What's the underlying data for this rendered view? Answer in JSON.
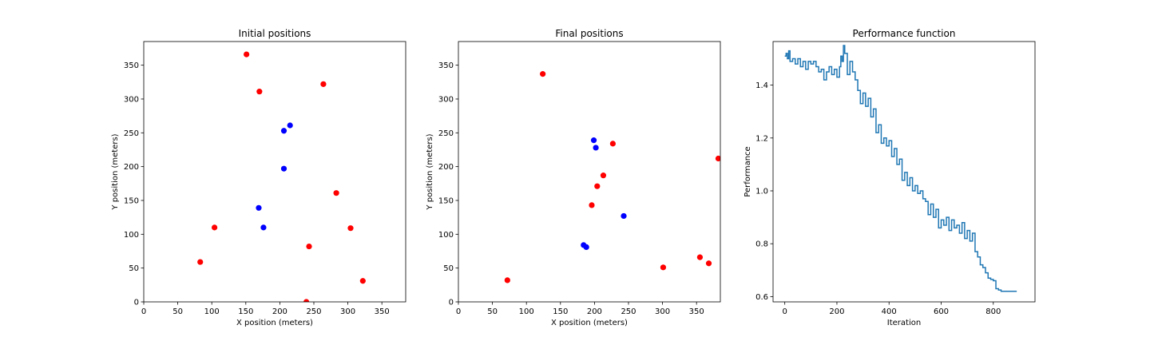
{
  "colors": {
    "red": "#ff0000",
    "blue": "#0000ff",
    "line": "#1f77b4",
    "axis": "#000000"
  },
  "chart_data": [
    {
      "type": "scatter",
      "title": "Initial positions",
      "xlabel": "X position (meters)",
      "ylabel": "Y position (meters)",
      "xlim": [
        0,
        385
      ],
      "ylim": [
        0,
        385
      ],
      "xticks": [
        0,
        50,
        100,
        150,
        200,
        250,
        300,
        350
      ],
      "yticks": [
        0,
        50,
        100,
        150,
        200,
        250,
        300,
        350
      ],
      "grid": false,
      "series": [
        {
          "color": "#ff0000",
          "points": [
            [
              151,
              366
            ],
            [
              170,
              311
            ],
            [
              264,
              322
            ],
            [
              283,
              161
            ],
            [
              104,
              110
            ],
            [
              304,
              109
            ],
            [
              83,
              59
            ],
            [
              243,
              82
            ],
            [
              322,
              31
            ],
            [
              239,
              0
            ]
          ]
        },
        {
          "color": "#0000ff",
          "points": [
            [
              215,
              261
            ],
            [
              206,
              253
            ],
            [
              206,
              197
            ],
            [
              169,
              139
            ],
            [
              176,
              110
            ]
          ]
        }
      ]
    },
    {
      "type": "scatter",
      "title": "Final positions",
      "xlabel": "X position (meters)",
      "ylabel": "Y position (meters)",
      "xlim": [
        0,
        385
      ],
      "ylim": [
        0,
        385
      ],
      "xticks": [
        0,
        50,
        100,
        150,
        200,
        250,
        300,
        350
      ],
      "yticks": [
        0,
        50,
        100,
        150,
        200,
        250,
        300,
        350
      ],
      "grid": false,
      "series": [
        {
          "color": "#ff0000",
          "points": [
            [
              124,
              337
            ],
            [
              227,
              234
            ],
            [
              382,
              212
            ],
            [
              213,
              187
            ],
            [
              204,
              171
            ],
            [
              196,
              143
            ],
            [
              301,
              51
            ],
            [
              355,
              66
            ],
            [
              368,
              57
            ],
            [
              72,
              32
            ]
          ]
        },
        {
          "color": "#0000ff",
          "points": [
            [
              199,
              239
            ],
            [
              202,
              228
            ],
            [
              243,
              127
            ],
            [
              184,
              84
            ],
            [
              188,
              81
            ]
          ]
        }
      ]
    },
    {
      "type": "line",
      "step": true,
      "title": "Performance function",
      "xlabel": "Iteration",
      "ylabel": "Performance",
      "xlim": [
        -45,
        960
      ],
      "ylim": [
        0.58,
        1.565
      ],
      "xticks": [
        0,
        200,
        400,
        600,
        800
      ],
      "yticks": [
        0.6,
        0.8,
        1.0,
        1.2,
        1.4
      ],
      "ytick_labels": [
        "0.6",
        "0.8",
        "1.0",
        "1.2",
        "1.4"
      ],
      "grid": false,
      "series": [
        {
          "color": "#1f77b4",
          "x": [
            0,
            5,
            10,
            15,
            20,
            30,
            40,
            50,
            60,
            70,
            80,
            90,
            100,
            110,
            120,
            130,
            140,
            150,
            160,
            170,
            180,
            190,
            200,
            210,
            215,
            220,
            225,
            230,
            240,
            250,
            260,
            270,
            280,
            290,
            300,
            310,
            320,
            330,
            340,
            350,
            360,
            370,
            380,
            390,
            400,
            410,
            420,
            430,
            440,
            450,
            460,
            470,
            480,
            490,
            500,
            510,
            520,
            530,
            540,
            550,
            560,
            570,
            580,
            590,
            600,
            610,
            620,
            630,
            640,
            650,
            660,
            670,
            680,
            690,
            700,
            710,
            720,
            730,
            740,
            750,
            760,
            770,
            780,
            790,
            800,
            810,
            820,
            830,
            840,
            850,
            860,
            870,
            880,
            890
          ],
          "y": [
            1.51,
            1.52,
            1.5,
            1.53,
            1.49,
            1.5,
            1.48,
            1.5,
            1.47,
            1.49,
            1.46,
            1.49,
            1.48,
            1.49,
            1.47,
            1.45,
            1.46,
            1.42,
            1.45,
            1.47,
            1.44,
            1.46,
            1.43,
            1.47,
            1.51,
            1.49,
            1.55,
            1.52,
            1.44,
            1.49,
            1.45,
            1.42,
            1.38,
            1.33,
            1.37,
            1.32,
            1.35,
            1.28,
            1.31,
            1.22,
            1.25,
            1.18,
            1.2,
            1.17,
            1.19,
            1.13,
            1.16,
            1.1,
            1.12,
            1.04,
            1.07,
            1.02,
            1.05,
            1.0,
            1.02,
            0.99,
            1.0,
            0.97,
            0.96,
            0.91,
            0.95,
            0.9,
            0.93,
            0.86,
            0.89,
            0.87,
            0.9,
            0.85,
            0.89,
            0.86,
            0.87,
            0.84,
            0.88,
            0.82,
            0.85,
            0.81,
            0.84,
            0.77,
            0.75,
            0.72,
            0.71,
            0.69,
            0.67,
            0.665,
            0.66,
            0.63,
            0.625,
            0.62,
            0.62,
            0.62,
            0.62,
            0.62,
            0.62,
            0.62
          ]
        }
      ]
    }
  ]
}
